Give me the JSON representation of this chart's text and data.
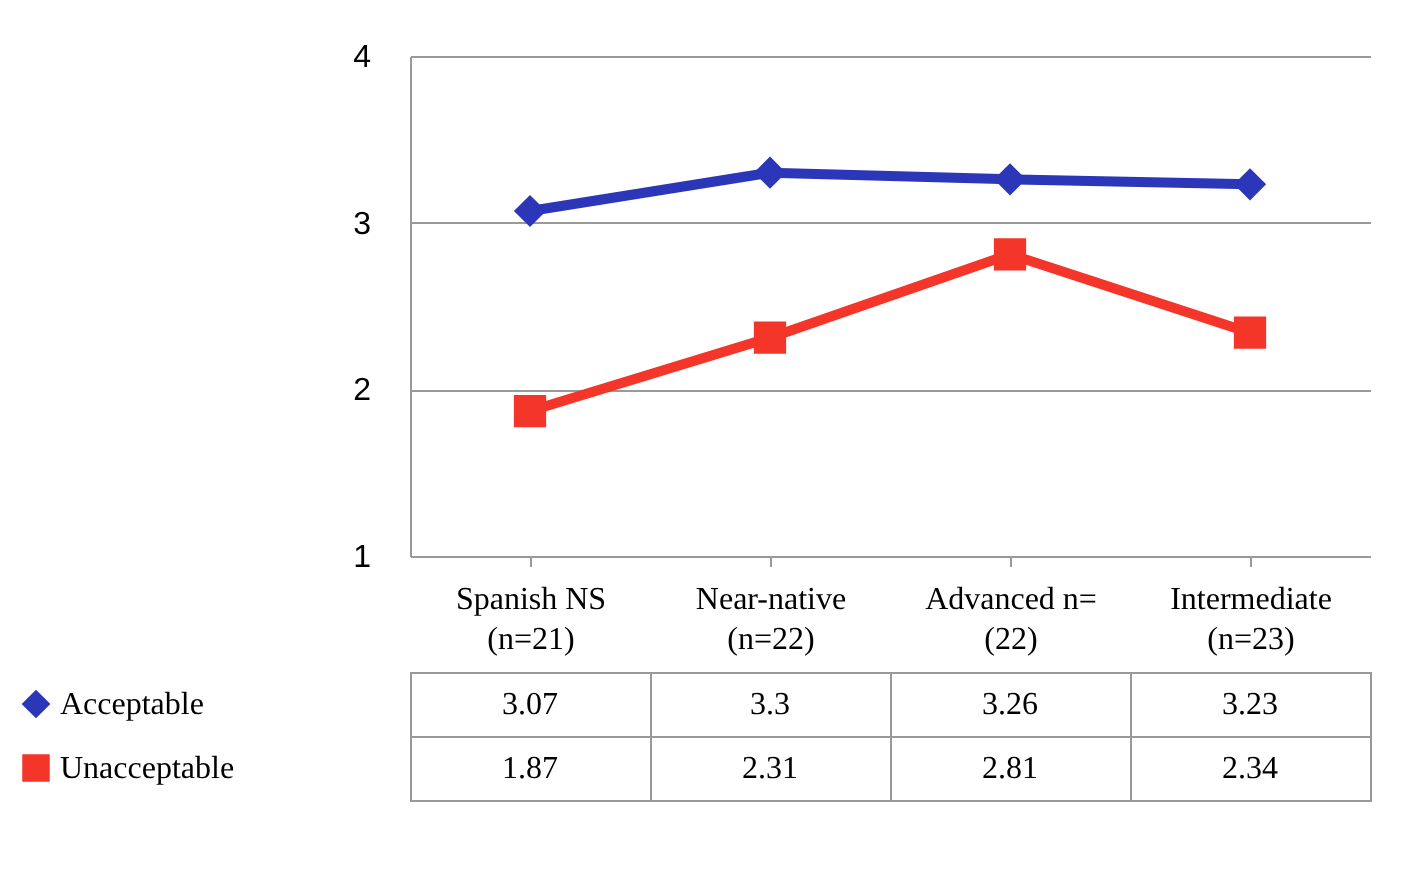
{
  "chart_data": {
    "type": "line",
    "categories": [
      "Spanish NS (n=21)",
      "Near-native (n=22)",
      "Advanced n= (22)",
      "Intermediate (n=23)"
    ],
    "series": [
      {
        "name": "Acceptable",
        "color": "#2b36b8",
        "marker": "diamond",
        "values": [
          3.07,
          3.3,
          3.26,
          3.23
        ]
      },
      {
        "name": "Unacceptable",
        "color": "#f4352a",
        "marker": "square",
        "values": [
          1.87,
          2.31,
          2.81,
          2.34
        ]
      }
    ],
    "ylim": [
      1,
      4
    ],
    "yticks": [
      1,
      2,
      3,
      4
    ],
    "grid": "y",
    "legend": "bottom",
    "data_labels": true
  }
}
